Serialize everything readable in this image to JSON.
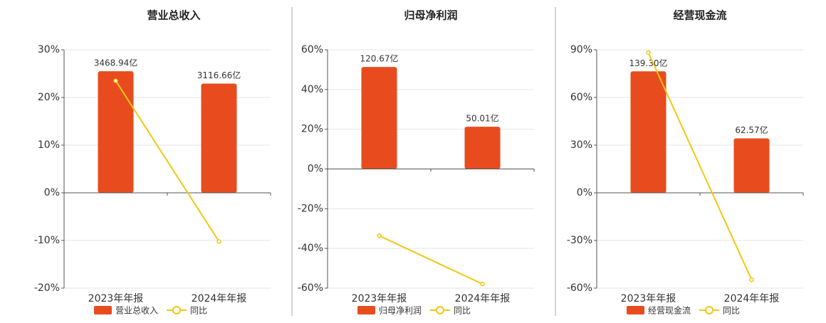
{
  "chart_data": [
    {
      "type": "bar",
      "title": "营业总收入",
      "categories": [
        "2023年年报",
        "2024年年报"
      ],
      "series": [
        {
          "name": "营业总收入",
          "type": "bar",
          "axis": "y2",
          "color": "#e84c1e",
          "values": [
            3468.94,
            3116.66
          ],
          "value_labels": [
            "3468.94亿",
            "3116.66亿"
          ]
        },
        {
          "name": "同比",
          "type": "line",
          "color": "#f2c811",
          "values": [
            23.5,
            -10.2
          ]
        }
      ],
      "ylim": [
        -20,
        30
      ],
      "yticks": [
        {
          "value": -20,
          "label": "-20%"
        },
        {
          "value": -10,
          "label": "-10%"
        },
        {
          "value": 0,
          "label": "0%"
        },
        {
          "value": 10,
          "label": "10%"
        },
        {
          "value": 20,
          "label": "20%"
        },
        {
          "value": 30,
          "label": "30%"
        }
      ],
      "y2lim": [
        -2720,
        4080
      ],
      "grid": true
    },
    {
      "type": "bar",
      "title": "归母净利润",
      "categories": [
        "2023年年报",
        "2024年年报"
      ],
      "series": [
        {
          "name": "归母净利润",
          "type": "bar",
          "axis": "y2",
          "color": "#e84c1e",
          "values": [
            120.67,
            50.01
          ],
          "value_labels": [
            "120.67亿",
            "50.01亿"
          ]
        },
        {
          "name": "同比",
          "type": "line",
          "color": "#f2c811",
          "values": [
            -33.6,
            -57.9
          ]
        }
      ],
      "ylim": [
        -60,
        60
      ],
      "yticks": [
        {
          "value": -60,
          "label": "-60%"
        },
        {
          "value": -40,
          "label": "-40%"
        },
        {
          "value": -20,
          "label": "-20%"
        },
        {
          "value": 0,
          "label": "0%"
        },
        {
          "value": 20,
          "label": "20%"
        },
        {
          "value": 40,
          "label": "40%"
        },
        {
          "value": 60,
          "label": "60%"
        }
      ],
      "y2lim": [
        -141,
        141
      ],
      "grid": true
    },
    {
      "type": "bar",
      "title": "经营现金流",
      "categories": [
        "2023年年报",
        "2024年年报"
      ],
      "series": [
        {
          "name": "经营现金流",
          "type": "bar",
          "axis": "y2",
          "color": "#e84c1e",
          "values": [
            139.3,
            62.57
          ],
          "value_labels": [
            "139.30亿",
            "62.57亿"
          ]
        },
        {
          "name": "同比",
          "type": "line",
          "color": "#f2c811",
          "values": [
            88.2,
            -54.7
          ]
        }
      ],
      "ylim": [
        -60,
        90
      ],
      "yticks": [
        {
          "value": -60,
          "label": "-60%"
        },
        {
          "value": -30,
          "label": "-30%"
        },
        {
          "value": 0,
          "label": "0%"
        },
        {
          "value": 30,
          "label": "30%"
        },
        {
          "value": 60,
          "label": "60%"
        },
        {
          "value": 90,
          "label": "90%"
        }
      ],
      "y2lim": [
        -109,
        164
      ],
      "grid": true
    }
  ]
}
